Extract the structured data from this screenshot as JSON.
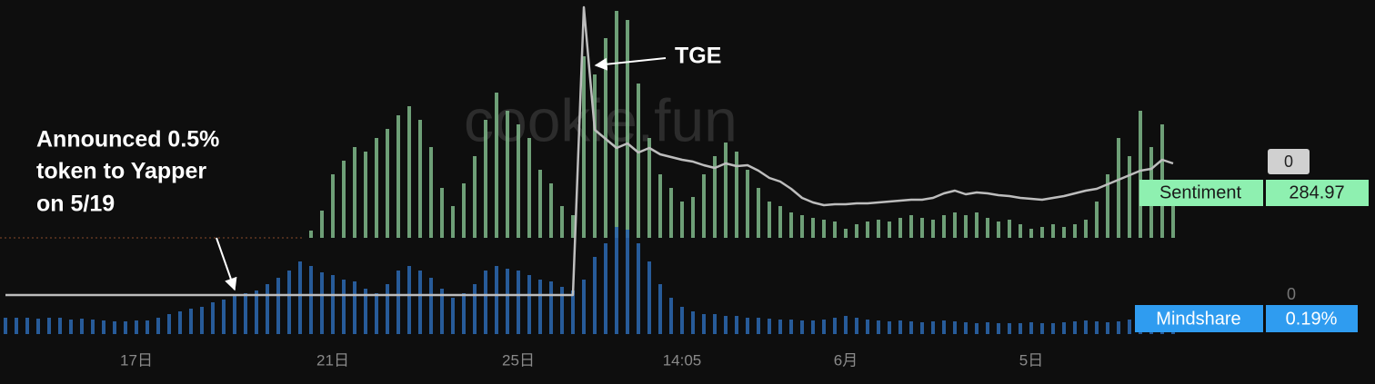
{
  "chart_data": {
    "type": "bar",
    "watermark": "cookie.fun",
    "categories": [
      null,
      null,
      null,
      null,
      null,
      null,
      null,
      null,
      null,
      null,
      null,
      null,
      "17日",
      null,
      null,
      null,
      null,
      null,
      null,
      null,
      null,
      null,
      null,
      null,
      null,
      null,
      null,
      null,
      null,
      null,
      "21日",
      null,
      null,
      null,
      null,
      null,
      null,
      null,
      null,
      null,
      null,
      null,
      null,
      null,
      null,
      null,
      null,
      "25日",
      null,
      null,
      null,
      null,
      null,
      null,
      null,
      null,
      null,
      null,
      null,
      null,
      null,
      null,
      "14:05",
      null,
      null,
      null,
      null,
      null,
      null,
      null,
      null,
      null,
      null,
      null,
      null,
      null,
      null,
      "6月",
      null,
      null,
      null,
      null,
      null,
      null,
      null,
      null,
      null,
      null,
      null,
      null,
      null,
      null,
      null,
      null,
      "5日",
      null,
      null,
      null,
      null,
      null,
      null,
      null,
      null,
      null,
      null,
      null,
      null,
      null
    ],
    "series": [
      {
        "name": "Sentiment",
        "color": "#7fb98a",
        "tag_color": "#8ef0b0",
        "current_label": "284.97",
        "zero_label": "0",
        "values": [
          0,
          0,
          0,
          0,
          0,
          0,
          0,
          0,
          0,
          0,
          0,
          0,
          0,
          0,
          0,
          0,
          0,
          0,
          0,
          0,
          0,
          0,
          0,
          0,
          0,
          0,
          0,
          0,
          8,
          30,
          70,
          85,
          100,
          95,
          110,
          120,
          135,
          145,
          130,
          100,
          55,
          35,
          60,
          90,
          130,
          160,
          140,
          125,
          110,
          75,
          60,
          35,
          25,
          200,
          180,
          220,
          250,
          240,
          170,
          110,
          70,
          55,
          40,
          45,
          70,
          90,
          105,
          95,
          75,
          55,
          40,
          35,
          28,
          25,
          22,
          20,
          18,
          10,
          15,
          18,
          20,
          18,
          22,
          25,
          22,
          20,
          25,
          28,
          25,
          28,
          22,
          18,
          20,
          15,
          10,
          12,
          15,
          12,
          15,
          20,
          40,
          70,
          110,
          90,
          140,
          100,
          125,
          45
        ]
      },
      {
        "name": "Mindshare",
        "color": "#2a64a8",
        "tag_color": "#2f9cf0",
        "current_label": "0.19%",
        "zero_label": "0",
        "values": [
          18,
          18,
          18,
          17,
          18,
          18,
          16,
          17,
          16,
          15,
          14,
          14,
          15,
          15,
          18,
          22,
          25,
          28,
          30,
          35,
          38,
          42,
          45,
          48,
          55,
          62,
          70,
          80,
          75,
          68,
          65,
          60,
          58,
          50,
          45,
          55,
          70,
          75,
          70,
          62,
          50,
          40,
          45,
          55,
          70,
          75,
          72,
          70,
          65,
          60,
          58,
          52,
          48,
          60,
          85,
          100,
          118,
          115,
          100,
          80,
          55,
          40,
          30,
          25,
          22,
          22,
          20,
          20,
          18,
          18,
          17,
          16,
          16,
          15,
          15,
          16,
          18,
          20,
          18,
          16,
          15,
          14,
          15,
          14,
          13,
          14,
          15,
          14,
          13,
          12,
          13,
          12,
          12,
          12,
          13,
          12,
          12,
          13,
          14,
          15,
          14,
          13,
          14,
          16,
          18,
          16,
          14,
          10
        ]
      }
    ],
    "line": {
      "color": "#bdbdbd",
      "values": [
        43,
        43,
        43,
        43,
        43,
        43,
        43,
        43,
        43,
        43,
        43,
        43,
        43,
        43,
        43,
        43,
        43,
        43,
        43,
        43,
        43,
        43,
        43,
        43,
        43,
        43,
        43,
        43,
        43,
        43,
        43,
        43,
        43,
        43,
        43,
        43,
        43,
        43,
        43,
        43,
        43,
        43,
        43,
        43,
        43,
        43,
        43,
        43,
        43,
        43,
        43,
        43,
        43,
        360,
        225,
        215,
        205,
        210,
        200,
        205,
        198,
        195,
        192,
        190,
        186,
        183,
        188,
        185,
        186,
        180,
        172,
        168,
        160,
        150,
        145,
        142,
        143,
        143,
        144,
        144,
        145,
        146,
        147,
        148,
        148,
        150,
        155,
        158,
        154,
        156,
        155,
        153,
        152,
        150,
        149,
        148,
        150,
        152,
        155,
        158,
        160,
        165,
        170,
        175,
        180,
        182,
        192,
        188
      ]
    },
    "annotations": [
      {
        "text": [
          "Announced 0.5%",
          "token to Yapper",
          "on 5/19"
        ]
      },
      {
        "text": "TGE"
      }
    ]
  }
}
